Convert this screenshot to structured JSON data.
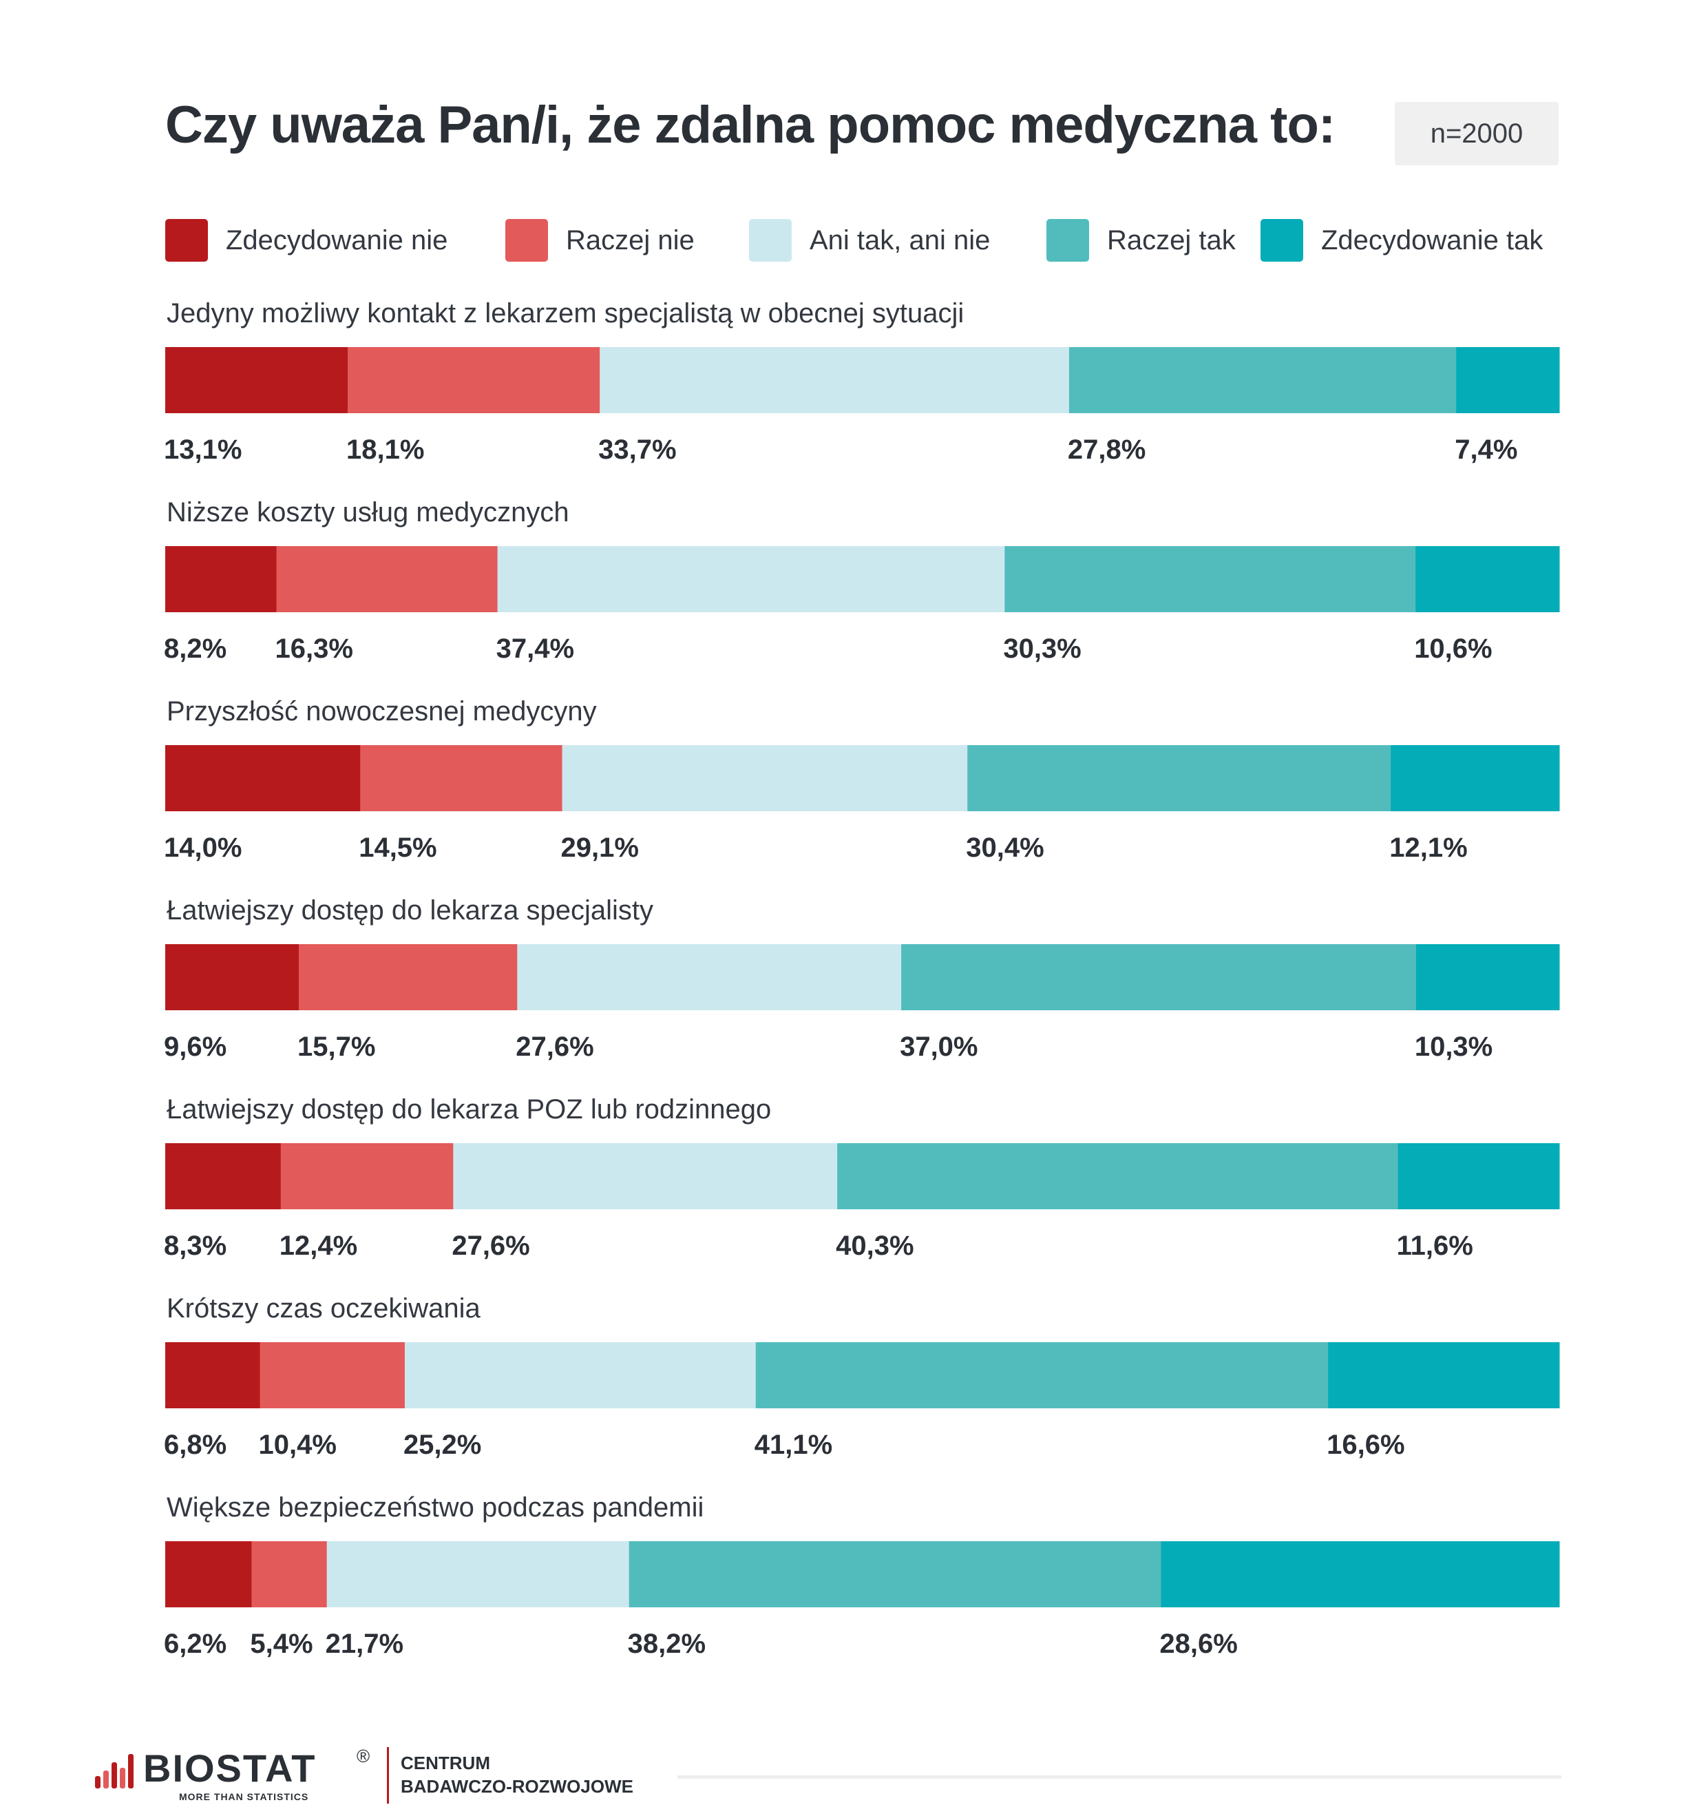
{
  "title": "Czy uważa Pan/i, że zdalna pomoc medyczna to:",
  "sample": "n=2000",
  "legend": [
    {
      "label": "Zdecydowanie nie",
      "color": "#b71a1c"
    },
    {
      "label": "Raczej nie",
      "color": "#e35a5a"
    },
    {
      "label": "Ani tak, ani nie",
      "color": "#cce8ef"
    },
    {
      "label": "Raczej tak",
      "color": "#52bcbd"
    },
    {
      "label": "Zdecydowanie tak",
      "color": "#04acb7"
    }
  ],
  "chart_data": {
    "type": "bar",
    "orientation": "horizontal",
    "stacked": true,
    "unit": "%",
    "categories": [
      "Jedyny możliwy kontakt z lekarzem specjalistą w obecnej sytuacji",
      "Niższe koszty usług medycznych",
      "Przyszłość nowoczesnej medycyny",
      "Łatwiejszy dostęp do lekarza specjalisty",
      "Łatwiejszy dostęp do lekarza POZ lub rodzinnego",
      "Krótszy czas oczekiwania",
      "Większe bezpieczeństwo podczas pandemii"
    ],
    "series": [
      {
        "name": "Zdecydowanie nie",
        "values": [
          13.1,
          8.2,
          14.0,
          9.6,
          8.3,
          6.8,
          6.2
        ],
        "labels": [
          "13,1%",
          "8,2%",
          "14,0%",
          "9,6%",
          "8,3%",
          "6,8%",
          "6,2%"
        ]
      },
      {
        "name": "Raczej nie",
        "values": [
          18.1,
          16.3,
          14.5,
          15.7,
          12.4,
          10.4,
          5.4
        ],
        "labels": [
          "18,1%",
          "16,3%",
          "14,5%",
          "15,7%",
          "12,4%",
          "10,4%",
          "5,4%"
        ]
      },
      {
        "name": "Ani tak, ani nie",
        "values": [
          33.7,
          37.4,
          29.1,
          27.6,
          27.6,
          25.2,
          21.7
        ],
        "labels": [
          "33,7%",
          "37,4%",
          "29,1%",
          "27,6%",
          "27,6%",
          "25,2%",
          "21,7%"
        ]
      },
      {
        "name": "Raczej tak",
        "values": [
          27.8,
          30.3,
          30.4,
          37.0,
          40.3,
          41.1,
          38.2
        ],
        "labels": [
          "27,8%",
          "30,3%",
          "30,4%",
          "37,0%",
          "40,3%",
          "41,1%",
          "38,2%"
        ]
      },
      {
        "name": "Zdecydowanie tak",
        "values": [
          7.4,
          10.6,
          12.1,
          10.3,
          11.6,
          16.6,
          28.6
        ],
        "labels": [
          "7,4%",
          "10,6%",
          "12,1%",
          "10,3%",
          "11,6%",
          "16,6%",
          "28,6%"
        ]
      }
    ]
  },
  "footer": {
    "logo_text": "BIOSTAT",
    "logo_mark": "®",
    "tagline": "MORE THAN STATISTICS",
    "org_line1": "CENTRUM",
    "org_line2": "BADAWCZO-ROZWOJOWE",
    "logo_colors": [
      "#b71a1c",
      "#e35a5a"
    ]
  }
}
